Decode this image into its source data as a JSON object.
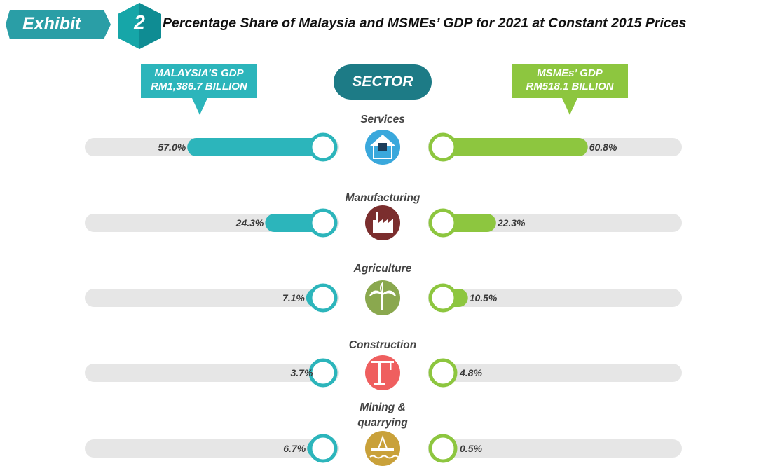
{
  "header": {
    "exhibit_label": "Exhibit",
    "exhibit_number": "2",
    "title": "Percentage Share of Malaysia and MSMEs’ GDP for 2021 at Constant 2015 Prices"
  },
  "callouts": {
    "left": {
      "line1": "MALAYSIA’S GDP",
      "line2": "RM1,386.7 BILLION"
    },
    "center": "SECTOR",
    "right": {
      "line1": "MSMEs’ GDP",
      "line2": "RM518.1 BILLION"
    }
  },
  "colors": {
    "malaysia": "#2cb5bb",
    "msme": "#8dc63f",
    "track": "#e6e6e6",
    "sector_pill": "#1d7b86",
    "icons": {
      "services": "#3aa8dc",
      "manufacturing": "#7b2e2e",
      "agriculture": "#8aa84e",
      "construction": "#ef5f5f",
      "mining": "#c9a13a"
    }
  },
  "chart_data": {
    "type": "bar",
    "title": "Percentage Share of Malaysia and MSMEs’ GDP for 2021 at Constant 2015 Prices",
    "xlabel": "",
    "ylabel": "Sector",
    "orientation": "horizontal-diverging",
    "xlim": [
      0,
      100
    ],
    "unit": "%",
    "categories": [
      "Services",
      "Manufacturing",
      "Agriculture",
      "Construction",
      "Mining & quarrying"
    ],
    "category_lines": [
      [
        "Services"
      ],
      [
        "Manufacturing"
      ],
      [
        "Agriculture"
      ],
      [
        "Construction"
      ],
      [
        "Mining &",
        "quarrying"
      ]
    ],
    "icons": [
      "services-building-icon",
      "factory-icon",
      "palm-tree-icon",
      "construction-crane-icon",
      "oil-rig-icon"
    ],
    "series": [
      {
        "name": "Malaysia’s GDP (RM1,386.7 billion)",
        "side": "left",
        "values": [
          57.0,
          24.3,
          7.1,
          3.7,
          6.7
        ],
        "labels": [
          "57.0%",
          "24.3%",
          "7.1%",
          "3.7%",
          "6.7%"
        ]
      },
      {
        "name": "MSMEs’ GDP (RM518.1 billion)",
        "side": "right",
        "values": [
          60.8,
          22.3,
          10.5,
          4.8,
          0.5
        ],
        "labels": [
          "60.8%",
          "22.3%",
          "10.5%",
          "4.8%",
          "0.5%"
        ]
      }
    ],
    "legend": "top"
  }
}
